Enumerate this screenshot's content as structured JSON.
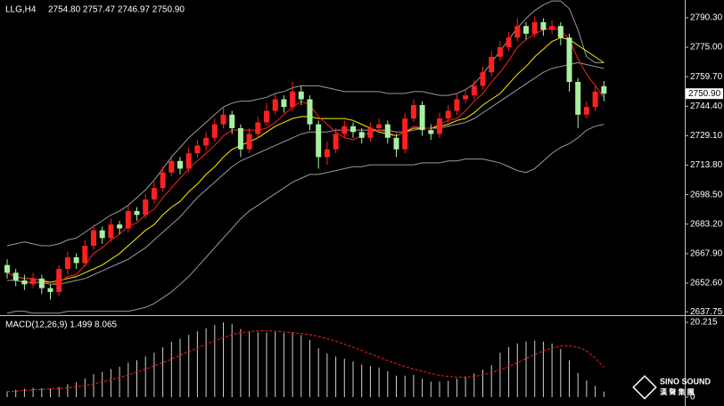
{
  "chart_data": [
    {
      "type": "candlestick",
      "symbol": "LLG,H4",
      "ohlc_text": "2754.80 2757.47 2746.97 2750.90",
      "open": [
        2662,
        2658,
        2654,
        2652,
        2655,
        2650,
        2648,
        2660,
        2666,
        2663,
        2672,
        2680,
        2676,
        2683,
        2681,
        2690,
        2688,
        2696,
        2702,
        2710,
        2716,
        2712,
        2720,
        2724,
        2728,
        2735,
        2740,
        2733,
        2722,
        2730,
        2736,
        2742,
        2748,
        2744,
        2752,
        2748,
        2735,
        2718,
        2722,
        2730,
        2734,
        2731,
        2728,
        2733,
        2735,
        2728,
        2722,
        2738,
        2745,
        2732,
        2730,
        2738,
        2742,
        2748,
        2750,
        2755,
        2762,
        2770,
        2775,
        2780,
        2786,
        2782,
        2788,
        2784,
        2786,
        2780,
        2757,
        2740,
        2744,
        2754.8
      ],
      "high": [
        2665,
        2660,
        2657,
        2658,
        2657,
        2652,
        2662,
        2669,
        2668,
        2675,
        2683,
        2682,
        2686,
        2685,
        2693,
        2692,
        2699,
        2705,
        2713,
        2719,
        2718,
        2723,
        2727,
        2731,
        2738,
        2744,
        2742,
        2735,
        2733,
        2739,
        2746,
        2751,
        2750,
        2757,
        2755,
        2750,
        2737,
        2726,
        2733,
        2737,
        2736,
        2733,
        2736,
        2738,
        2737,
        2730,
        2741,
        2748,
        2747,
        2735,
        2741,
        2745,
        2751,
        2753,
        2758,
        2765,
        2773,
        2778,
        2783,
        2790,
        2788,
        2791,
        2790,
        2789,
        2788,
        2782,
        2759,
        2747,
        2755,
        2757.47
      ],
      "low": [
        2655,
        2651,
        2649,
        2650,
        2647,
        2644,
        2646,
        2657,
        2660,
        2661,
        2670,
        2673,
        2674,
        2678,
        2679,
        2685,
        2686,
        2694,
        2700,
        2708,
        2709,
        2710,
        2718,
        2721,
        2726,
        2733,
        2730,
        2718,
        2720,
        2728,
        2734,
        2740,
        2741,
        2742,
        2745,
        2732,
        2712,
        2714,
        2720,
        2728,
        2728,
        2725,
        2726,
        2731,
        2725,
        2718,
        2720,
        2736,
        2729,
        2727,
        2728,
        2736,
        2740,
        2746,
        2748,
        2753,
        2760,
        2768,
        2773,
        2778,
        2779,
        2780,
        2781,
        2782,
        2776,
        2752,
        2733,
        2738,
        2742,
        2746.97
      ],
      "close": [
        2658,
        2654,
        2652,
        2655,
        2650,
        2648,
        2660,
        2666,
        2663,
        2672,
        2680,
        2676,
        2683,
        2681,
        2690,
        2688,
        2696,
        2702,
        2710,
        2716,
        2712,
        2720,
        2724,
        2728,
        2735,
        2740,
        2733,
        2722,
        2730,
        2736,
        2742,
        2748,
        2744,
        2752,
        2748,
        2735,
        2718,
        2722,
        2730,
        2734,
        2731,
        2728,
        2733,
        2735,
        2728,
        2722,
        2738,
        2745,
        2732,
        2730,
        2738,
        2742,
        2748,
        2750,
        2755,
        2762,
        2770,
        2775,
        2780,
        2786,
        2782,
        2788,
        2784,
        2786,
        2780,
        2757,
        2740,
        2744,
        2752,
        2750.9
      ],
      "up_color": "#ff2020",
      "down_color": "#a8f0a0",
      "overlays": [
        {
          "color": "#9a9a9a",
          "values": [
            2672,
            2673,
            2674,
            2673,
            2672,
            2672,
            2673,
            2675,
            2676,
            2679,
            2682,
            2685,
            2688,
            2690,
            2693,
            2697,
            2701,
            2706,
            2712,
            2718,
            2723,
            2728,
            2732,
            2736,
            2740,
            2744,
            2746,
            2747,
            2747,
            2748,
            2749,
            2751,
            2752,
            2754,
            2755,
            2755,
            2755,
            2754,
            2753,
            2752,
            2752,
            2752,
            2752,
            2752,
            2751,
            2751,
            2751,
            2752,
            2752,
            2751,
            2750,
            2750,
            2751,
            2753,
            2756,
            2761,
            2767,
            2773,
            2779,
            2785,
            2790,
            2794,
            2797,
            2799,
            2799,
            2795,
            2784,
            2770,
            2767,
            2767
          ]
        },
        {
          "color": "#9a9a9a",
          "values": [
            2654,
            2654,
            2653,
            2653,
            2653,
            2652,
            2652,
            2653,
            2654,
            2655,
            2657,
            2659,
            2661,
            2663,
            2665,
            2668,
            2671,
            2675,
            2679,
            2683,
            2687,
            2692,
            2697,
            2701,
            2705,
            2709,
            2713,
            2716,
            2718,
            2720,
            2722,
            2724,
            2726,
            2728,
            2730,
            2731,
            2731,
            2731,
            2732,
            2732,
            2732,
            2732,
            2732,
            2732,
            2732,
            2731,
            2731,
            2732,
            2733,
            2733,
            2733,
            2734,
            2735,
            2736,
            2738,
            2741,
            2744,
            2747,
            2750,
            2753,
            2756,
            2759,
            2762,
            2764,
            2765,
            2766,
            2767,
            2766,
            2765,
            2764
          ]
        },
        {
          "color": "#9a9a9a",
          "values": [
            2637,
            2638,
            2638,
            2637,
            2637,
            2637,
            2637,
            2638,
            2638,
            2638,
            2638,
            2638,
            2638,
            2638,
            2638,
            2639,
            2640,
            2642,
            2645,
            2648,
            2652,
            2656,
            2661,
            2666,
            2671,
            2676,
            2681,
            2686,
            2690,
            2693,
            2696,
            2699,
            2702,
            2705,
            2707,
            2709,
            2709,
            2710,
            2711,
            2712,
            2713,
            2713,
            2714,
            2714,
            2714,
            2714,
            2714,
            2714,
            2715,
            2715,
            2715,
            2716,
            2716,
            2717,
            2717,
            2717,
            2716,
            2715,
            2713,
            2711,
            2710,
            2712,
            2716,
            2720,
            2723,
            2725,
            2728,
            2732,
            2734,
            2735
          ]
        },
        {
          "color": "#ffee00",
          "values": [
            2658,
            2656,
            2655,
            2655,
            2654,
            2653,
            2654,
            2655,
            2656,
            2658,
            2660,
            2662,
            2665,
            2668,
            2672,
            2676,
            2680,
            2683,
            2688,
            2692,
            2695,
            2700,
            2704,
            2709,
            2713,
            2718,
            2722,
            2724,
            2726,
            2728,
            2731,
            2734,
            2736,
            2738,
            2739,
            2739,
            2738,
            2738,
            2738,
            2738,
            2737,
            2735,
            2733,
            2731,
            2730,
            2729,
            2731,
            2733,
            2733,
            2733,
            2734,
            2735,
            2737,
            2738,
            2741,
            2745,
            2748,
            2751,
            2756,
            2761,
            2765,
            2770,
            2774,
            2778,
            2780,
            2779,
            2776,
            2773,
            2770,
            2767
          ]
        },
        {
          "color": "#ff2020",
          "values": [
            2658,
            2656,
            2655,
            2655,
            2654,
            2652,
            2653,
            2656,
            2657,
            2662,
            2668,
            2671,
            2675,
            2678,
            2682,
            2684,
            2688,
            2691,
            2697,
            2702,
            2707,
            2712,
            2716,
            2720,
            2724,
            2729,
            2732,
            2732,
            2732,
            2732,
            2733,
            2736,
            2740,
            2744,
            2747,
            2745,
            2739,
            2735,
            2731,
            2728,
            2727,
            2729,
            2731,
            2732,
            2731,
            2729,
            2731,
            2734,
            2733,
            2733,
            2735,
            2737,
            2738,
            2742,
            2747,
            2751,
            2757,
            2762,
            2768,
            2775,
            2779,
            2782,
            2784,
            2785,
            2784,
            2779,
            2769,
            2761,
            2755,
            2749
          ]
        }
      ],
      "ylim": [
        2636.9,
        2799.5
      ],
      "yticks": [
        {
          "value": 2790.3,
          "label": "2790.30"
        },
        {
          "value": 2775,
          "label": "2775.00"
        },
        {
          "value": 2759.7,
          "label": "2759.70"
        },
        {
          "value": 2744.4,
          "label": "2744.40"
        },
        {
          "value": 2729.1,
          "label": "2729.10"
        },
        {
          "value": 2713.8,
          "label": "2713.80"
        },
        {
          "value": 2698.5,
          "label": "2698.50"
        },
        {
          "value": 2683.2,
          "label": "2683.20"
        },
        {
          "value": 2667.9,
          "label": "2667.90"
        },
        {
          "value": 2652.6,
          "label": "2652.60"
        },
        2637.75
      ],
      "last_price": {
        "value": 2750.9,
        "label": "2750.90"
      }
    },
    {
      "type": "macd",
      "title": "MACD(12,26,9) 1.499 8.065",
      "histogram": [
        1.5,
        2.0,
        2.3,
        2.5,
        2.4,
        2.3,
        2.8,
        3.5,
        4.0,
        5.0,
        6.2,
        6.8,
        7.6,
        8.2,
        9.3,
        10.0,
        11.0,
        12.0,
        13.5,
        15.0,
        15.8,
        16.8,
        17.8,
        18.6,
        19.5,
        20.2,
        19.8,
        18.4,
        17.8,
        17.5,
        17.4,
        17.6,
        17.3,
        17.3,
        16.8,
        15.4,
        13.2,
        11.8,
        11.0,
        10.4,
        9.6,
        8.8,
        8.4,
        8.0,
        7.0,
        5.8,
        5.8,
        6.0,
        5.0,
        4.2,
        4.2,
        4.4,
        5.0,
        5.6,
        6.4,
        7.4,
        8.6,
        12,
        13.5,
        14.5,
        15,
        15.3,
        15,
        14.5,
        13,
        10,
        6.5,
        4.5,
        3,
        1.499
      ],
      "signal": [
        1.5,
        1.6,
        1.8,
        2.0,
        2.1,
        2.2,
        2.3,
        2.5,
        2.8,
        3.1,
        3.6,
        4.1,
        4.7,
        5.3,
        6.0,
        6.8,
        7.6,
        8.4,
        9.3,
        10.3,
        11.3,
        12.3,
        13.3,
        14.3,
        15.2,
        16.1,
        16.9,
        17.4,
        17.7,
        17.9,
        17.9,
        17.8,
        17.6,
        17.4,
        17.2,
        16.9,
        16.4,
        15.8,
        15.1,
        14.3,
        13.5,
        12.6,
        11.7,
        10.8,
        9.9,
        9.0,
        8.3,
        7.6,
        7.0,
        6.4,
        5.9,
        5.6,
        5.4,
        5.4,
        5.6,
        6.0,
        6.6,
        7.4,
        8.3,
        9.3,
        10.4,
        11.5,
        12.5,
        13.3,
        13.8,
        13.9,
        13.5,
        12.5,
        10.5,
        8.065
      ],
      "histogram_color": "#d0d0d0",
      "signal_color": "#ff2020",
      "ylim": [
        -1.44,
        21.66
      ],
      "yticks": [
        20.215,
        0
      ]
    }
  ],
  "watermark": {
    "brand": "SINO SOUND",
    "sub": "漢 聲 集 團"
  }
}
